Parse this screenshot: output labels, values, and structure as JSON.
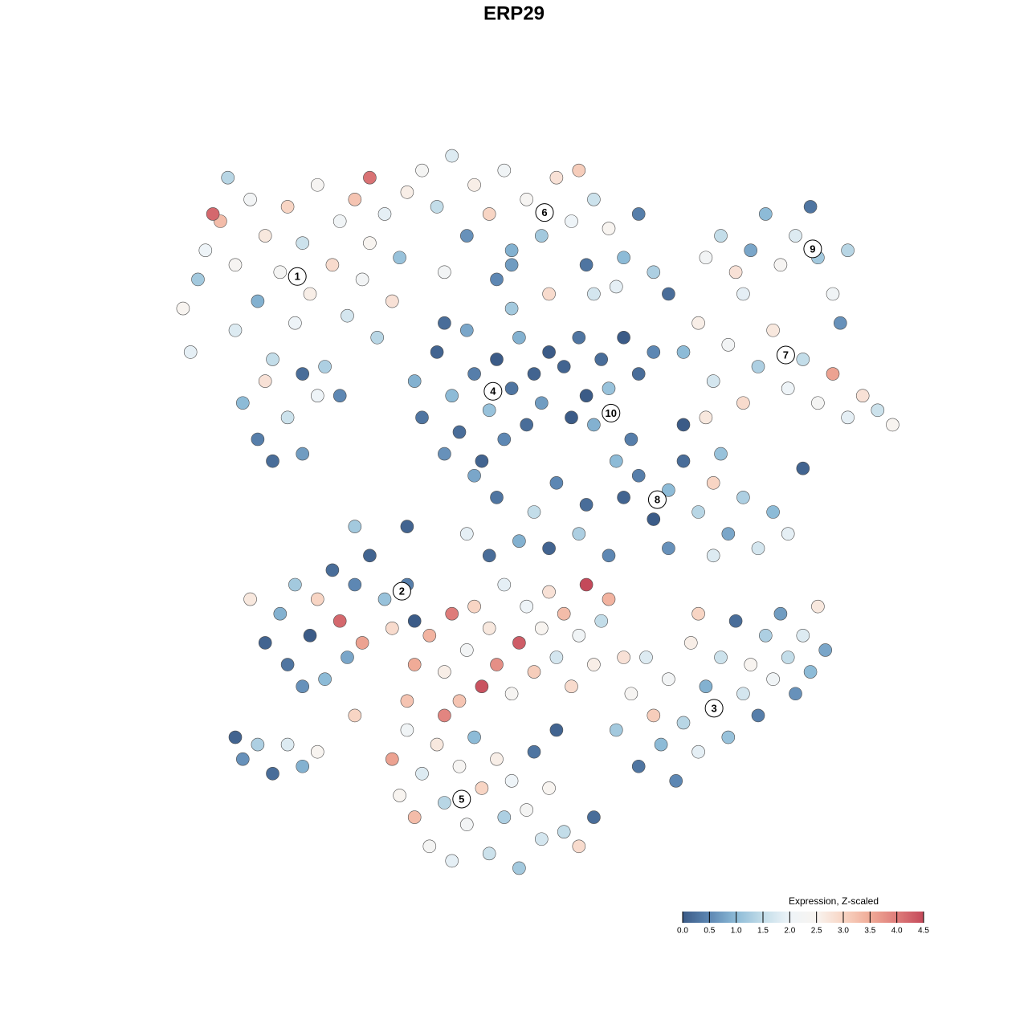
{
  "chart_data": {
    "type": "scatter",
    "title": "ERP29",
    "xlim": [
      0,
      100
    ],
    "ylim": [
      0,
      100
    ],
    "x": [
      3,
      5,
      6,
      8,
      10,
      10,
      12,
      13,
      14,
      15,
      16,
      17,
      18,
      19,
      20,
      21,
      22,
      23,
      24,
      25,
      26,
      27,
      28,
      29,
      30,
      31,
      32,
      33,
      11,
      13,
      15,
      17,
      19,
      21,
      14,
      24,
      9,
      28,
      7,
      4,
      35,
      37,
      39,
      41,
      42,
      44,
      46,
      47,
      49,
      51,
      53,
      55,
      57,
      58,
      60,
      62,
      64,
      66,
      68,
      45,
      52,
      38,
      56,
      61,
      73,
      75,
      77,
      79,
      81,
      83,
      85,
      87,
      88,
      90,
      92,
      91,
      78,
      70,
      72,
      74,
      76,
      78,
      80,
      82,
      84,
      86,
      88,
      90,
      92,
      94,
      96,
      98,
      73,
      75,
      34,
      35,
      37,
      38,
      39,
      40,
      41,
      42,
      43,
      44,
      45,
      46,
      47,
      48,
      49,
      50,
      51,
      52,
      42,
      45,
      47,
      38,
      54,
      56,
      57,
      58,
      59,
      60,
      62,
      63,
      64,
      66,
      61,
      55,
      62,
      64,
      66,
      68,
      70,
      72,
      74,
      76,
      78,
      80,
      82,
      84,
      86,
      70,
      68,
      57,
      74,
      14,
      16,
      17,
      18,
      20,
      21,
      22,
      23,
      24,
      25,
      26,
      27,
      28,
      30,
      31,
      33,
      34,
      12,
      19,
      26,
      36,
      38,
      39,
      40,
      41,
      42,
      43,
      44,
      45,
      46,
      47,
      48,
      49,
      50,
      51,
      52,
      53,
      54,
      55,
      56,
      57,
      58,
      59,
      60,
      44,
      48,
      52,
      56,
      60,
      38,
      34,
      61,
      63,
      64,
      65,
      66,
      67,
      68,
      69,
      70,
      71,
      72,
      73,
      74,
      75,
      76,
      77,
      78,
      79,
      80,
      81,
      82,
      83,
      84,
      85,
      86,
      87,
      88,
      89,
      72,
      62,
      31,
      32,
      33,
      34,
      35,
      36,
      37,
      38,
      39,
      40,
      41,
      42,
      43,
      44,
      45,
      46,
      47,
      48,
      49,
      50,
      51,
      52,
      54,
      56,
      58,
      53,
      33,
      10,
      11,
      13,
      15,
      17,
      19,
      21,
      26,
      33,
      41,
      50,
      53,
      19,
      47,
      58
    ],
    "y": [
      78,
      82,
      86,
      90,
      75,
      84,
      93,
      79,
      88,
      71,
      83,
      92,
      76,
      87,
      80,
      95,
      70,
      84,
      90,
      77,
      93,
      82,
      87,
      74,
      91,
      79,
      85,
      94,
      65,
      60,
      57,
      63,
      58,
      66,
      68,
      66,
      96,
      96,
      91,
      72,
      97,
      92,
      99,
      88,
      95,
      91,
      97,
      86,
      93,
      88,
      96,
      90,
      84,
      93,
      89,
      85,
      91,
      83,
      80,
      82,
      80,
      83,
      97,
      81,
      85,
      88,
      83,
      86,
      91,
      84,
      88,
      92,
      85,
      80,
      86,
      76,
      80,
      72,
      76,
      68,
      73,
      65,
      70,
      75,
      67,
      71,
      65,
      69,
      63,
      66,
      64,
      62,
      63,
      58,
      68,
      63,
      72,
      58,
      66,
      61,
      75,
      69,
      57,
      64,
      71,
      60,
      67,
      74,
      62,
      69,
      65,
      72,
      55,
      52,
      78,
      76,
      70,
      74,
      66,
      62,
      71,
      67,
      74,
      60,
      69,
      72,
      57,
      63,
      52,
      55,
      49,
      53,
      57,
      50,
      54,
      47,
      52,
      45,
      50,
      47,
      56,
      62,
      45,
      51,
      44,
      32,
      36,
      29,
      40,
      33,
      38,
      27,
      42,
      35,
      30,
      40,
      32,
      44,
      38,
      34,
      40,
      35,
      38,
      26,
      22,
      33,
      28,
      36,
      24,
      31,
      37,
      26,
      34,
      29,
      40,
      25,
      32,
      37,
      28,
      34,
      39,
      30,
      36,
      26,
      33,
      40,
      29,
      35,
      38,
      44,
      46,
      45,
      47,
      44,
      22,
      29,
      20,
      25,
      15,
      30,
      22,
      18,
      27,
      13,
      21,
      32,
      17,
      26,
      23,
      30,
      19,
      35,
      25,
      29,
      22,
      33,
      27,
      36,
      30,
      25,
      33,
      28,
      37,
      31,
      36,
      30,
      16,
      11,
      20,
      8,
      14,
      4,
      18,
      10,
      2,
      15,
      7,
      19,
      12,
      3,
      16,
      8,
      13,
      1,
      9,
      17,
      5,
      12,
      6,
      4,
      8,
      20,
      24,
      19,
      16,
      18,
      14,
      18,
      15,
      17,
      48,
      48,
      47,
      50,
      54,
      69,
      84,
      80
    ],
    "values": [
      2.5,
      1.2,
      2.0,
      3.3,
      1.8,
      2.4,
      2.2,
      0.9,
      2.7,
      1.5,
      2.3,
      3.0,
      2.0,
      1.6,
      2.6,
      2.4,
      1.3,
      2.9,
      2.1,
      1.7,
      3.2,
      2.2,
      2.5,
      1.4,
      1.9,
      2.8,
      1.1,
      2.6,
      1.0,
      0.4,
      0.2,
      1.6,
      0.7,
      2.0,
      2.8,
      0.5,
      1.4,
      4.1,
      4.2,
      1.9,
      2.3,
      1.5,
      1.8,
      0.6,
      2.6,
      3.0,
      2.1,
      0.9,
      2.4,
      1.2,
      2.8,
      2.0,
      0.3,
      1.6,
      2.5,
      1.0,
      0.4,
      1.3,
      0.2,
      0.5,
      2.9,
      2.2,
      3.1,
      1.9,
      2.2,
      1.5,
      2.8,
      0.8,
      1.0,
      2.4,
      1.8,
      0.3,
      1.2,
      2.1,
      1.4,
      0.6,
      1.9,
      1.0,
      2.6,
      1.7,
      2.2,
      2.9,
      1.3,
      2.7,
      2.0,
      1.5,
      2.3,
      3.6,
      1.9,
      2.8,
      1.6,
      2.5,
      2.7,
      1.1,
      0.9,
      0.3,
      0.1,
      0.6,
      1.0,
      0.2,
      0.8,
      0.4,
      0.1,
      1.1,
      0,
      0.5,
      0.3,
      0.9,
      0.2,
      0.1,
      0.7,
      0,
      0.8,
      0.3,
      1.2,
      0.2,
      0.1,
      0.3,
      0,
      0.9,
      0.2,
      1.1,
      0,
      0.4,
      0.2,
      0.5,
      1.0,
      0,
      0.1,
      0.4,
      0,
      1.0,
      0.2,
      1.4,
      3.0,
      0.8,
      1.3,
      1.7,
      1.0,
      1.9,
      0.1,
      0,
      0.6,
      0.2,
      1.8,
      0.1,
      0.9,
      0.3,
      1.2,
      0,
      3.0,
      1.0,
      0.2,
      4.2,
      0.8,
      0.5,
      3.6,
      0.1,
      1.1,
      2.9,
      0.4,
      0,
      2.7,
      0.6,
      3.0,
      3.4,
      2.6,
      4.0,
      3.2,
      2.2,
      3.0,
      4.4,
      2.7,
      3.8,
      1.9,
      2.4,
      4.3,
      2.0,
      3.1,
      2.5,
      2.8,
      1.7,
      3.3,
      2.9,
      2.1,
      4.5,
      2.6,
      1.5,
      3.4,
      0.2,
      0.9,
      0.1,
      1.3,
      0.5,
      3.9,
      3.5,
      1.2,
      2.4,
      0.3,
      1.8,
      3.1,
      1.0,
      2.2,
      0.5,
      1.4,
      2.6,
      1.9,
      0.9,
      2.0,
      1.6,
      1.1,
      0.2,
      1.7,
      2.5,
      0.4,
      1.3,
      2.1,
      0.7,
      1.5,
      0.6,
      1.8,
      1.0,
      2.7,
      0.8,
      3.0,
      2.8,
      3.6,
      2.5,
      2.1,
      3.3,
      1.8,
      2.3,
      2.7,
      1.4,
      1.9,
      2.4,
      2.2,
      1.0,
      3.0,
      1.6,
      2.6,
      1.3,
      2.0,
      1.2,
      2.3,
      0.3,
      1.7,
      2.5,
      1.5,
      2.9,
      0.2,
      0.1,
      3.2,
      0.1,
      0.6,
      1.3,
      0.2,
      1.8,
      0.9,
      2.5,
      1.2,
      0.1,
      1.9,
      1.5,
      0.5,
      0.2,
      0.7,
      1.7
    ],
    "clusters": [
      {
        "label": "1",
        "x": 18.3,
        "y": 82.4
      },
      {
        "label": "6",
        "x": 51.4,
        "y": 91.2
      },
      {
        "label": "9",
        "x": 87.3,
        "y": 86.2
      },
      {
        "label": "7",
        "x": 83.7,
        "y": 71.6
      },
      {
        "label": "4",
        "x": 44.5,
        "y": 66.6
      },
      {
        "label": "10",
        "x": 60.3,
        "y": 63.6
      },
      {
        "label": "8",
        "x": 66.5,
        "y": 51.7
      },
      {
        "label": "2",
        "x": 32.3,
        "y": 39.1
      },
      {
        "label": "3",
        "x": 74.1,
        "y": 23.0
      },
      {
        "label": "5",
        "x": 40.3,
        "y": 10.5
      }
    ],
    "colorbar": {
      "title": "Expression, Z-scaled",
      "clim": [
        0,
        4.5
      ],
      "colors": [
        "#3b5b87",
        "#5d87b3",
        "#8dbbd7",
        "#c3dde9",
        "#eef4f8",
        "#f8f4f0",
        "#f8d5c4",
        "#f0ab97",
        "#de7c7a",
        "#c4495a"
      ],
      "ticks": [
        {
          "value": 0,
          "label": "0.0"
        },
        0.5,
        {
          "value": 1,
          "label": "1.0"
        },
        1.5,
        {
          "value": 2,
          "label": "2.0"
        },
        2.5,
        {
          "value": 3,
          "label": "3.0"
        },
        3.5,
        {
          "value": 4,
          "label": "4.0"
        },
        4.5
      ]
    }
  }
}
